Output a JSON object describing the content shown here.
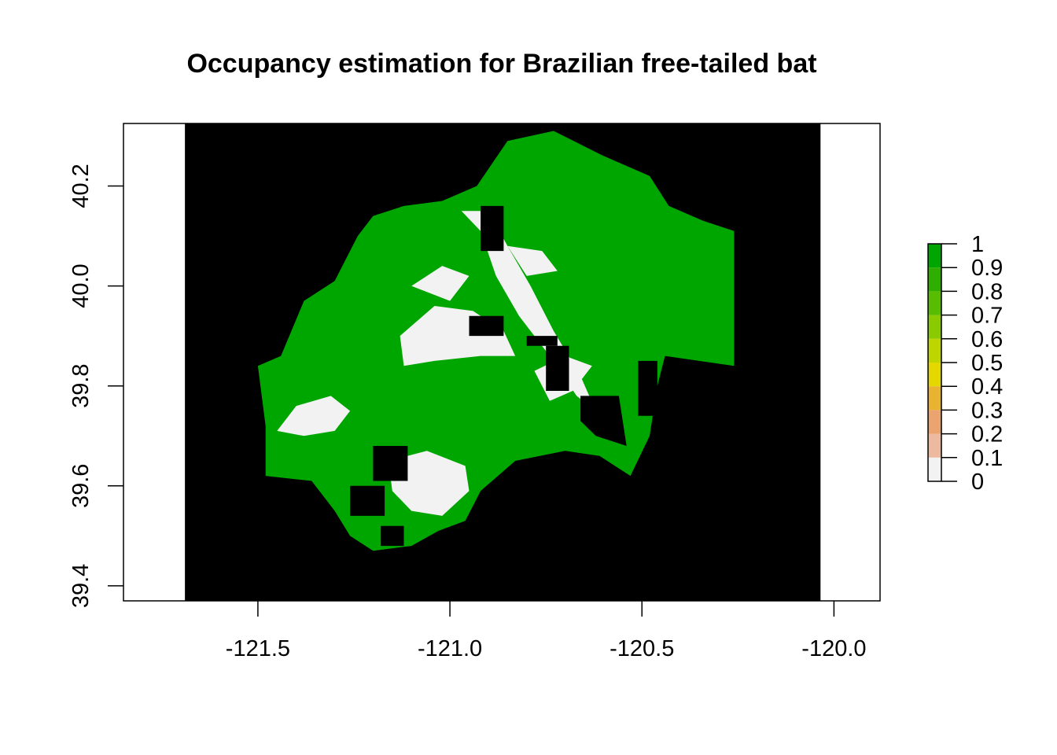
{
  "chart_data": {
    "type": "heatmap",
    "title": "Occupancy estimation for Brazilian free-tailed bat",
    "xlabel": "",
    "ylabel": "",
    "xlim": [
      -121.85,
      -119.88
    ],
    "ylim": [
      39.37,
      40.325
    ],
    "x_ticks": [
      -121.5,
      -121.0,
      -120.5,
      -120.0
    ],
    "x_tick_labels": [
      "-121.5",
      "-121.0",
      "-120.5",
      "-120.0"
    ],
    "y_ticks": [
      39.4,
      39.6,
      39.8,
      40.0,
      40.2
    ],
    "y_tick_labels": [
      "39.4",
      "39.6",
      "39.8",
      "40.0",
      "40.2"
    ],
    "raster_extent": {
      "xmin": -121.69,
      "xmax": -120.035,
      "ymin": 39.37,
      "ymax": 40.325
    },
    "raster_background_color": "#000000",
    "legend": {
      "placement": "right",
      "breaks": [
        0,
        0.1,
        0.2,
        0.3,
        0.4,
        0.5,
        0.6,
        0.7,
        0.8,
        0.9,
        1
      ],
      "labels": [
        "0",
        "0.1",
        "0.2",
        "0.3",
        "0.4",
        "0.5",
        "0.6",
        "0.7",
        "0.8",
        "0.9",
        "1"
      ],
      "colors": [
        "#F2F2F2",
        "#F1D5CC",
        "#EEBA9F",
        "#EBA36F",
        "#E8B331",
        "#E5D700",
        "#BFD500",
        "#8ACA00",
        "#58BC00",
        "#2EAF00",
        "#00A600"
      ]
    },
    "occupancy_regions": [
      {
        "value": 0.98,
        "points": [
          [
            -121.48,
            39.72
          ],
          [
            -121.5,
            39.84
          ],
          [
            -121.44,
            39.86
          ],
          [
            -121.38,
            39.97
          ],
          [
            -121.3,
            40.01
          ],
          [
            -121.24,
            40.1
          ],
          [
            -121.2,
            40.14
          ],
          [
            -121.12,
            40.16
          ],
          [
            -121.02,
            40.17
          ],
          [
            -120.93,
            40.2
          ],
          [
            -120.85,
            40.29
          ],
          [
            -120.73,
            40.31
          ],
          [
            -120.6,
            40.26
          ],
          [
            -120.48,
            40.22
          ],
          [
            -120.43,
            40.16
          ],
          [
            -120.34,
            40.13
          ],
          [
            -120.26,
            40.11
          ],
          [
            -120.26,
            39.84
          ],
          [
            -120.44,
            39.86
          ],
          [
            -120.46,
            39.8
          ],
          [
            -120.48,
            39.7
          ],
          [
            -120.53,
            39.62
          ],
          [
            -120.61,
            39.66
          ],
          [
            -120.7,
            39.67
          ],
          [
            -120.83,
            39.65
          ],
          [
            -120.92,
            39.59
          ],
          [
            -120.96,
            39.53
          ],
          [
            -121.03,
            39.51
          ],
          [
            -121.1,
            39.48
          ],
          [
            -121.2,
            39.47
          ],
          [
            -121.26,
            39.5
          ],
          [
            -121.3,
            39.55
          ],
          [
            -121.36,
            39.61
          ],
          [
            -121.48,
            39.62
          ]
        ]
      },
      {
        "value": 0.02,
        "points": [
          [
            -121.45,
            39.71
          ],
          [
            -121.4,
            39.76
          ],
          [
            -121.31,
            39.78
          ],
          [
            -121.26,
            39.75
          ],
          [
            -121.3,
            39.71
          ],
          [
            -121.38,
            39.7
          ]
        ]
      },
      {
        "value": 0.02,
        "points": [
          [
            -121.16,
            39.65
          ],
          [
            -121.06,
            39.67
          ],
          [
            -120.96,
            39.64
          ],
          [
            -120.95,
            39.59
          ],
          [
            -121.02,
            39.54
          ],
          [
            -121.1,
            39.55
          ],
          [
            -121.15,
            39.59
          ]
        ]
      },
      {
        "value": 0.02,
        "points": [
          [
            -121.13,
            39.9
          ],
          [
            -121.04,
            39.96
          ],
          [
            -120.94,
            39.95
          ],
          [
            -120.86,
            39.91
          ],
          [
            -120.83,
            39.86
          ],
          [
            -120.92,
            39.86
          ],
          [
            -121.04,
            39.85
          ],
          [
            -121.12,
            39.84
          ]
        ]
      },
      {
        "value": 0.02,
        "points": [
          [
            -120.97,
            40.15
          ],
          [
            -120.92,
            40.11
          ],
          [
            -120.88,
            40.02
          ],
          [
            -120.82,
            39.94
          ],
          [
            -120.74,
            39.86
          ],
          [
            -120.67,
            39.78
          ],
          [
            -120.62,
            39.75
          ],
          [
            -120.66,
            39.82
          ],
          [
            -120.73,
            39.91
          ],
          [
            -120.79,
            40.0
          ],
          [
            -120.85,
            40.08
          ],
          [
            -120.9,
            40.15
          ]
        ]
      },
      {
        "value": 0.02,
        "points": [
          [
            -121.1,
            40.0
          ],
          [
            -121.02,
            40.04
          ],
          [
            -120.95,
            40.02
          ],
          [
            -121.0,
            39.97
          ]
        ]
      },
      {
        "value": 0.02,
        "points": [
          [
            -120.85,
            40.08
          ],
          [
            -120.76,
            40.07
          ],
          [
            -120.72,
            40.03
          ],
          [
            -120.8,
            40.02
          ]
        ]
      },
      {
        "value": 0.02,
        "points": [
          [
            -120.78,
            39.83
          ],
          [
            -120.7,
            39.86
          ],
          [
            -120.63,
            39.84
          ],
          [
            -120.68,
            39.79
          ],
          [
            -120.74,
            39.77
          ]
        ]
      }
    ],
    "masked_regions": [
      {
        "points": [
          [
            -120.92,
            40.16
          ],
          [
            -120.86,
            40.16
          ],
          [
            -120.86,
            40.07
          ],
          [
            -120.92,
            40.07
          ]
        ]
      },
      {
        "points": [
          [
            -120.95,
            39.94
          ],
          [
            -120.86,
            39.94
          ],
          [
            -120.86,
            39.9
          ],
          [
            -120.95,
            39.9
          ]
        ]
      },
      {
        "points": [
          [
            -120.8,
            39.9
          ],
          [
            -120.72,
            39.9
          ],
          [
            -120.72,
            39.88
          ],
          [
            -120.8,
            39.88
          ]
        ]
      },
      {
        "points": [
          [
            -120.75,
            39.88
          ],
          [
            -120.69,
            39.88
          ],
          [
            -120.69,
            39.79
          ],
          [
            -120.75,
            39.79
          ]
        ]
      },
      {
        "points": [
          [
            -120.66,
            39.78
          ],
          [
            -120.56,
            39.78
          ],
          [
            -120.54,
            39.68
          ],
          [
            -120.62,
            39.7
          ],
          [
            -120.66,
            39.73
          ]
        ]
      },
      {
        "points": [
          [
            -120.51,
            39.85
          ],
          [
            -120.46,
            39.85
          ],
          [
            -120.46,
            39.74
          ],
          [
            -120.51,
            39.74
          ]
        ]
      },
      {
        "points": [
          [
            -121.2,
            39.68
          ],
          [
            -121.11,
            39.68
          ],
          [
            -121.11,
            39.61
          ],
          [
            -121.2,
            39.61
          ]
        ]
      },
      {
        "points": [
          [
            -121.26,
            39.6
          ],
          [
            -121.17,
            39.6
          ],
          [
            -121.17,
            39.54
          ],
          [
            -121.26,
            39.54
          ]
        ]
      },
      {
        "points": [
          [
            -121.18,
            39.52
          ],
          [
            -121.12,
            39.52
          ],
          [
            -121.12,
            39.48
          ],
          [
            -121.18,
            39.48
          ]
        ]
      }
    ]
  }
}
